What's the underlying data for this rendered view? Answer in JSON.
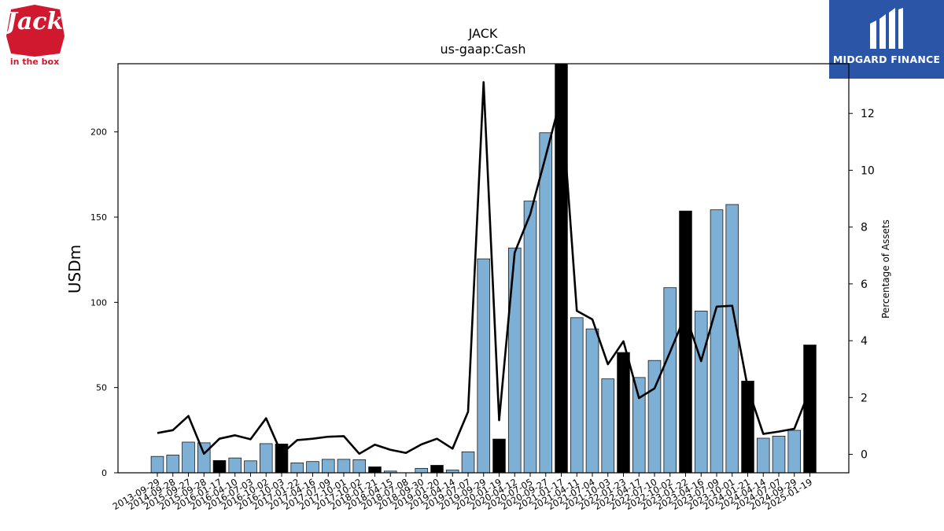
{
  "logos": {
    "left": {
      "text_main": "Jack",
      "text_sub": "in the box",
      "color": "#d0182f"
    },
    "right": {
      "text": "MIDGARD FINANCE",
      "color": "#2b56a8"
    }
  },
  "chart_data": {
    "type": "bar",
    "title": "JACK",
    "subtitle": "us-gaap:Cash",
    "ylabel": "USDm",
    "y2label": "Percentage of Assets",
    "ylim": [
      0,
      240
    ],
    "y2lim": [
      -0.65,
      13.75
    ],
    "yticks": [
      0,
      50,
      100,
      150,
      200
    ],
    "y2ticks": [
      0,
      2,
      4,
      6,
      8,
      10,
      12
    ],
    "bar_color": "#7eb0d5",
    "highlight_color": "#000000",
    "line_color": "#000000",
    "categories": [
      "2013-09-29",
      "2014-09-28",
      "2015-09-27",
      "2015-09-28",
      "2016-01-17",
      "2016-04-10",
      "2016-07-03",
      "2016-10-02",
      "2016-10-03",
      "2017-01-22",
      "2017-04-16",
      "2017-07-09",
      "2017-10-01",
      "2017-10-02",
      "2018-01-21",
      "2018-04-15",
      "2018-07-08",
      "2018-09-30",
      "2019-01-20",
      "2019-04-14",
      "2019-07-07",
      "2019-09-29",
      "2020-01-19",
      "2020-04-12",
      "2020-07-05",
      "2020-09-27",
      "2021-01-17",
      "2021-04-11",
      "2021-07-04",
      "2021-10-03",
      "2022-01-23",
      "2022-04-17",
      "2022-07-10",
      "2022-10-02",
      "2023-01-22",
      "2023-04-16",
      "2023-07-09",
      "2023-10-01",
      "2024-01-21",
      "2024-04-14",
      "2024-07-07",
      "2024-09-29",
      "2025-01-19"
    ],
    "values": [
      9.6,
      10.4,
      18.0,
      17.6,
      7.2,
      8.7,
      7.0,
      17.1,
      16.9,
      5.8,
      6.6,
      7.9,
      7.9,
      7.7,
      3.5,
      1.0,
      0.0,
      2.6,
      4.4,
      1.6,
      12.3,
      125.5,
      19.8,
      131.9,
      159.4,
      199.5,
      240.0,
      91.0,
      84.4,
      55.1,
      70.6,
      55.9,
      65.9,
      108.6,
      153.6,
      94.9,
      154.3,
      157.4,
      53.8,
      20.3,
      21.5,
      24.9,
      75.0
    ],
    "highlighted": [
      false,
      false,
      false,
      false,
      true,
      false,
      false,
      false,
      true,
      false,
      false,
      false,
      false,
      false,
      true,
      false,
      false,
      false,
      true,
      false,
      false,
      false,
      true,
      false,
      false,
      false,
      true,
      false,
      false,
      false,
      true,
      false,
      false,
      false,
      true,
      false,
      false,
      false,
      true,
      false,
      false,
      false,
      true
    ],
    "line_series": {
      "name": "Percentage of Assets",
      "values": [
        0.75,
        0.85,
        1.35,
        0.02,
        0.55,
        0.67,
        0.53,
        1.27,
        0.02,
        0.5,
        0.55,
        0.62,
        0.64,
        0.02,
        0.34,
        0.16,
        0.05,
        0.35,
        0.55,
        0.2,
        1.5,
        13.1,
        1.2,
        7.1,
        8.45,
        10.5,
        12.6,
        5.05,
        4.75,
        3.17,
        3.98,
        1.98,
        2.32,
        3.6,
        4.92,
        3.28,
        5.2,
        5.23,
        2.35,
        0.72,
        0.8,
        0.9,
        2.28
      ]
    }
  }
}
